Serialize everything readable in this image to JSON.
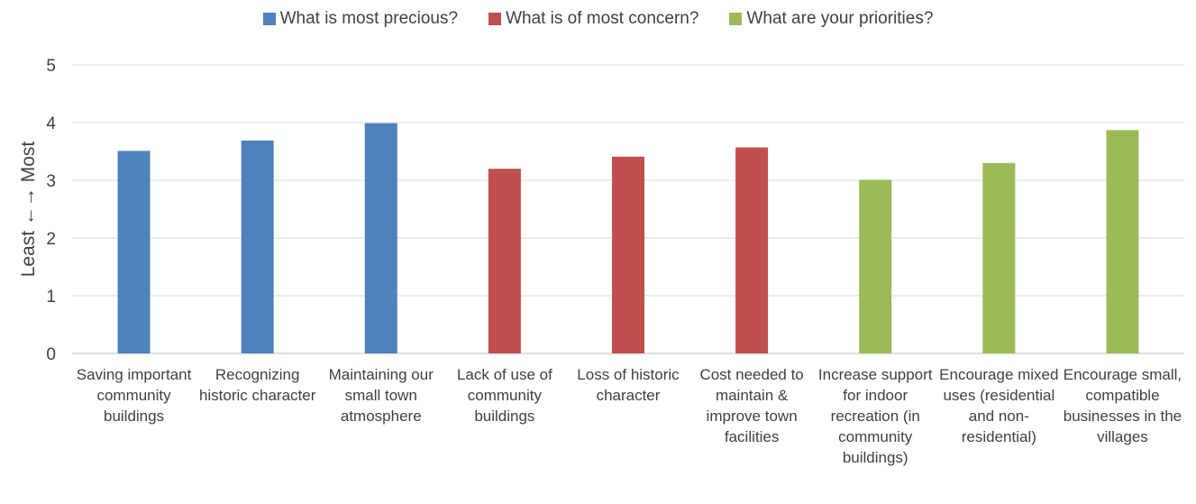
{
  "chart_data": {
    "type": "bar",
    "title": "",
    "xlabel": "",
    "ylabel": "Least ←→ Most",
    "ylim": [
      0,
      5
    ],
    "yticks": [
      "0",
      "1",
      "2",
      "3",
      "4",
      "5"
    ],
    "grid": true,
    "legend_position": "top-center",
    "series": [
      {
        "name": "What is most precious?",
        "color": "#4F81BD"
      },
      {
        "name": "What is of most concern?",
        "color": "#C0504D"
      },
      {
        "name": "What are your priorities?",
        "color": "#9BBB59"
      }
    ],
    "categories": [
      "Saving important community buildings",
      "Recognizing historic character",
      "Maintaining our small town atmosphere",
      "Lack of use of community buildings",
      "Loss of historic character",
      "Cost needed to maintain & improve town facilities",
      "Increase support for indoor recreation (in community buildings)",
      "Encourage mixed uses (residential and non-residential)",
      "Encourage small, compatible businesses in the villages"
    ],
    "bars": [
      {
        "category_index": 0,
        "series_index": 0,
        "value": 3.51
      },
      {
        "category_index": 1,
        "series_index": 0,
        "value": 3.69
      },
      {
        "category_index": 2,
        "series_index": 0,
        "value": 3.99
      },
      {
        "category_index": 3,
        "series_index": 1,
        "value": 3.2
      },
      {
        "category_index": 4,
        "series_index": 1,
        "value": 3.41
      },
      {
        "category_index": 5,
        "series_index": 1,
        "value": 3.57
      },
      {
        "category_index": 6,
        "series_index": 2,
        "value": 3.01
      },
      {
        "category_index": 7,
        "series_index": 2,
        "value": 3.3
      },
      {
        "category_index": 8,
        "series_index": 2,
        "value": 3.87
      }
    ]
  }
}
